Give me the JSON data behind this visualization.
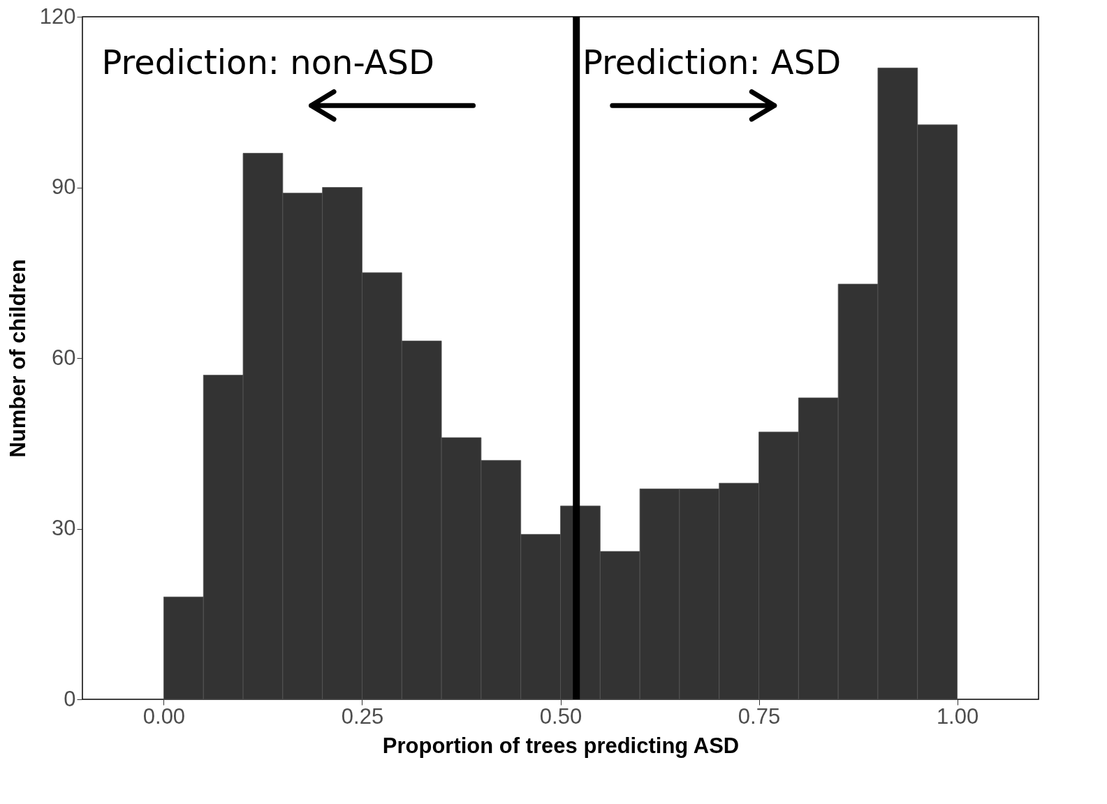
{
  "chart_data": {
    "type": "histogram",
    "xlabel": "Proportion of trees predicting ASD",
    "ylabel": "Number of children",
    "bins": [
      0,
      0.05,
      0.1,
      0.15,
      0.2,
      0.25,
      0.3,
      0.35,
      0.4,
      0.45,
      0.5,
      0.55,
      0.6,
      0.65,
      0.7,
      0.75,
      0.8,
      0.85,
      0.9,
      0.95,
      1
    ],
    "values": [
      18,
      57,
      96,
      89,
      90,
      75,
      63,
      46,
      42,
      29,
      34,
      26,
      37,
      37,
      38,
      47,
      53,
      73,
      111,
      101
    ],
    "color": "#333333",
    "xlim": [
      -0.1025,
      1.1025
    ],
    "xticks": [
      {
        "value": 0,
        "label": "0.00"
      },
      {
        "value": 0.25,
        "label": "0.25"
      },
      {
        "value": 0.5,
        "label": "0.50"
      },
      {
        "value": 0.75,
        "label": "0.75"
      },
      {
        "value": 1,
        "label": "1.00"
      }
    ],
    "ylim": [
      0,
      120
    ],
    "yticks": [
      0,
      30,
      60,
      90,
      120
    ],
    "grid": false,
    "ref_lines": [
      {
        "axis": "x",
        "value": 0.52,
        "color": "#000000"
      }
    ],
    "annotations": [
      "Prediction: non-ASD",
      "Prediction: ASD"
    ]
  }
}
